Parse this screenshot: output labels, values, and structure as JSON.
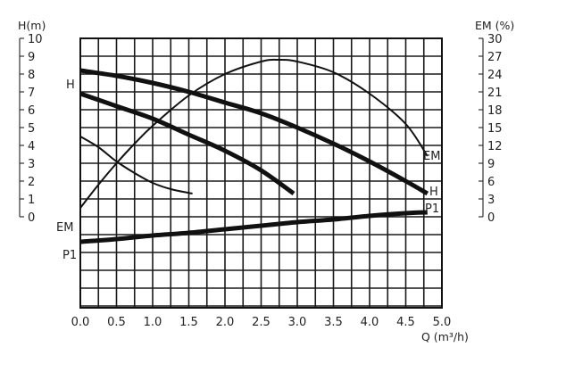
{
  "chart_data": {
    "type": "line",
    "x_axis": {
      "label": "Q (m³/h)",
      "range": [
        0,
        5
      ],
      "ticks": [
        "0.0",
        "0.5",
        "1.0",
        "1.5",
        "2.0",
        "2.5",
        "3.0",
        "3.5",
        "4.0",
        "4.5",
        "5.0"
      ]
    },
    "y_axis_left": {
      "label": "H(m)",
      "range": [
        0,
        10
      ],
      "ticks": [
        "0",
        "1",
        "2",
        "3",
        "4",
        "5",
        "6",
        "7",
        "8",
        "9",
        "10"
      ]
    },
    "y_axis_right": {
      "label": "EM (%)",
      "range": [
        0,
        30
      ],
      "ticks": [
        "0",
        "3",
        "6",
        "9",
        "12",
        "15",
        "18",
        "21",
        "24",
        "27",
        "30"
      ]
    },
    "grid": true,
    "series": [
      {
        "name": "H",
        "axis": "H",
        "style": "thick",
        "x": [
          0,
          0.5,
          1.0,
          1.5,
          2.0,
          2.5,
          3.0,
          3.5,
          4.0,
          4.5,
          4.8
        ],
        "y": [
          8.2,
          7.9,
          7.5,
          7.0,
          6.4,
          5.8,
          5.0,
          4.1,
          3.1,
          2.0,
          1.3
        ]
      },
      {
        "name": "",
        "axis": "H",
        "style": "thick",
        "x": [
          0,
          0.5,
          1.0,
          1.5,
          2.0,
          2.5,
          2.95
        ],
        "y": [
          6.9,
          6.2,
          5.5,
          4.6,
          3.7,
          2.6,
          1.3
        ]
      },
      {
        "name": "",
        "axis": "H",
        "style": "thin",
        "x": [
          0,
          0.25,
          0.5,
          0.75,
          1.0,
          1.25,
          1.55
        ],
        "y": [
          4.5,
          3.9,
          3.1,
          2.45,
          1.9,
          1.55,
          1.3
        ]
      },
      {
        "name": "EM",
        "axis": "EM",
        "style": "thin",
        "x": [
          0,
          0.25,
          0.5,
          0.75,
          1.0,
          1.5,
          2.0,
          2.5,
          2.75,
          3.0,
          3.5,
          4.0,
          4.5,
          4.8
        ],
        "y": [
          1.5,
          5.4,
          9.0,
          12.3,
          15.3,
          20.4,
          24.0,
          26.1,
          26.4,
          26.1,
          24.3,
          20.7,
          15.6,
          10.2
        ]
      },
      {
        "name": "P1",
        "axis": "H",
        "style": "thick",
        "x": [
          0,
          0.5,
          1.0,
          1.5,
          2.0,
          2.5,
          3.0,
          3.5,
          4.0,
          4.5,
          4.8
        ],
        "y": [
          -1.4,
          -1.25,
          -1.05,
          -0.9,
          -0.7,
          -0.5,
          -0.3,
          -0.15,
          0.05,
          0.2,
          0.25
        ]
      }
    ],
    "curve_labels": {
      "left_h": "H",
      "left_em": "EM",
      "left_p1": "P1",
      "right_em": "EM",
      "right_h": "H",
      "right_p1": "P1"
    }
  }
}
